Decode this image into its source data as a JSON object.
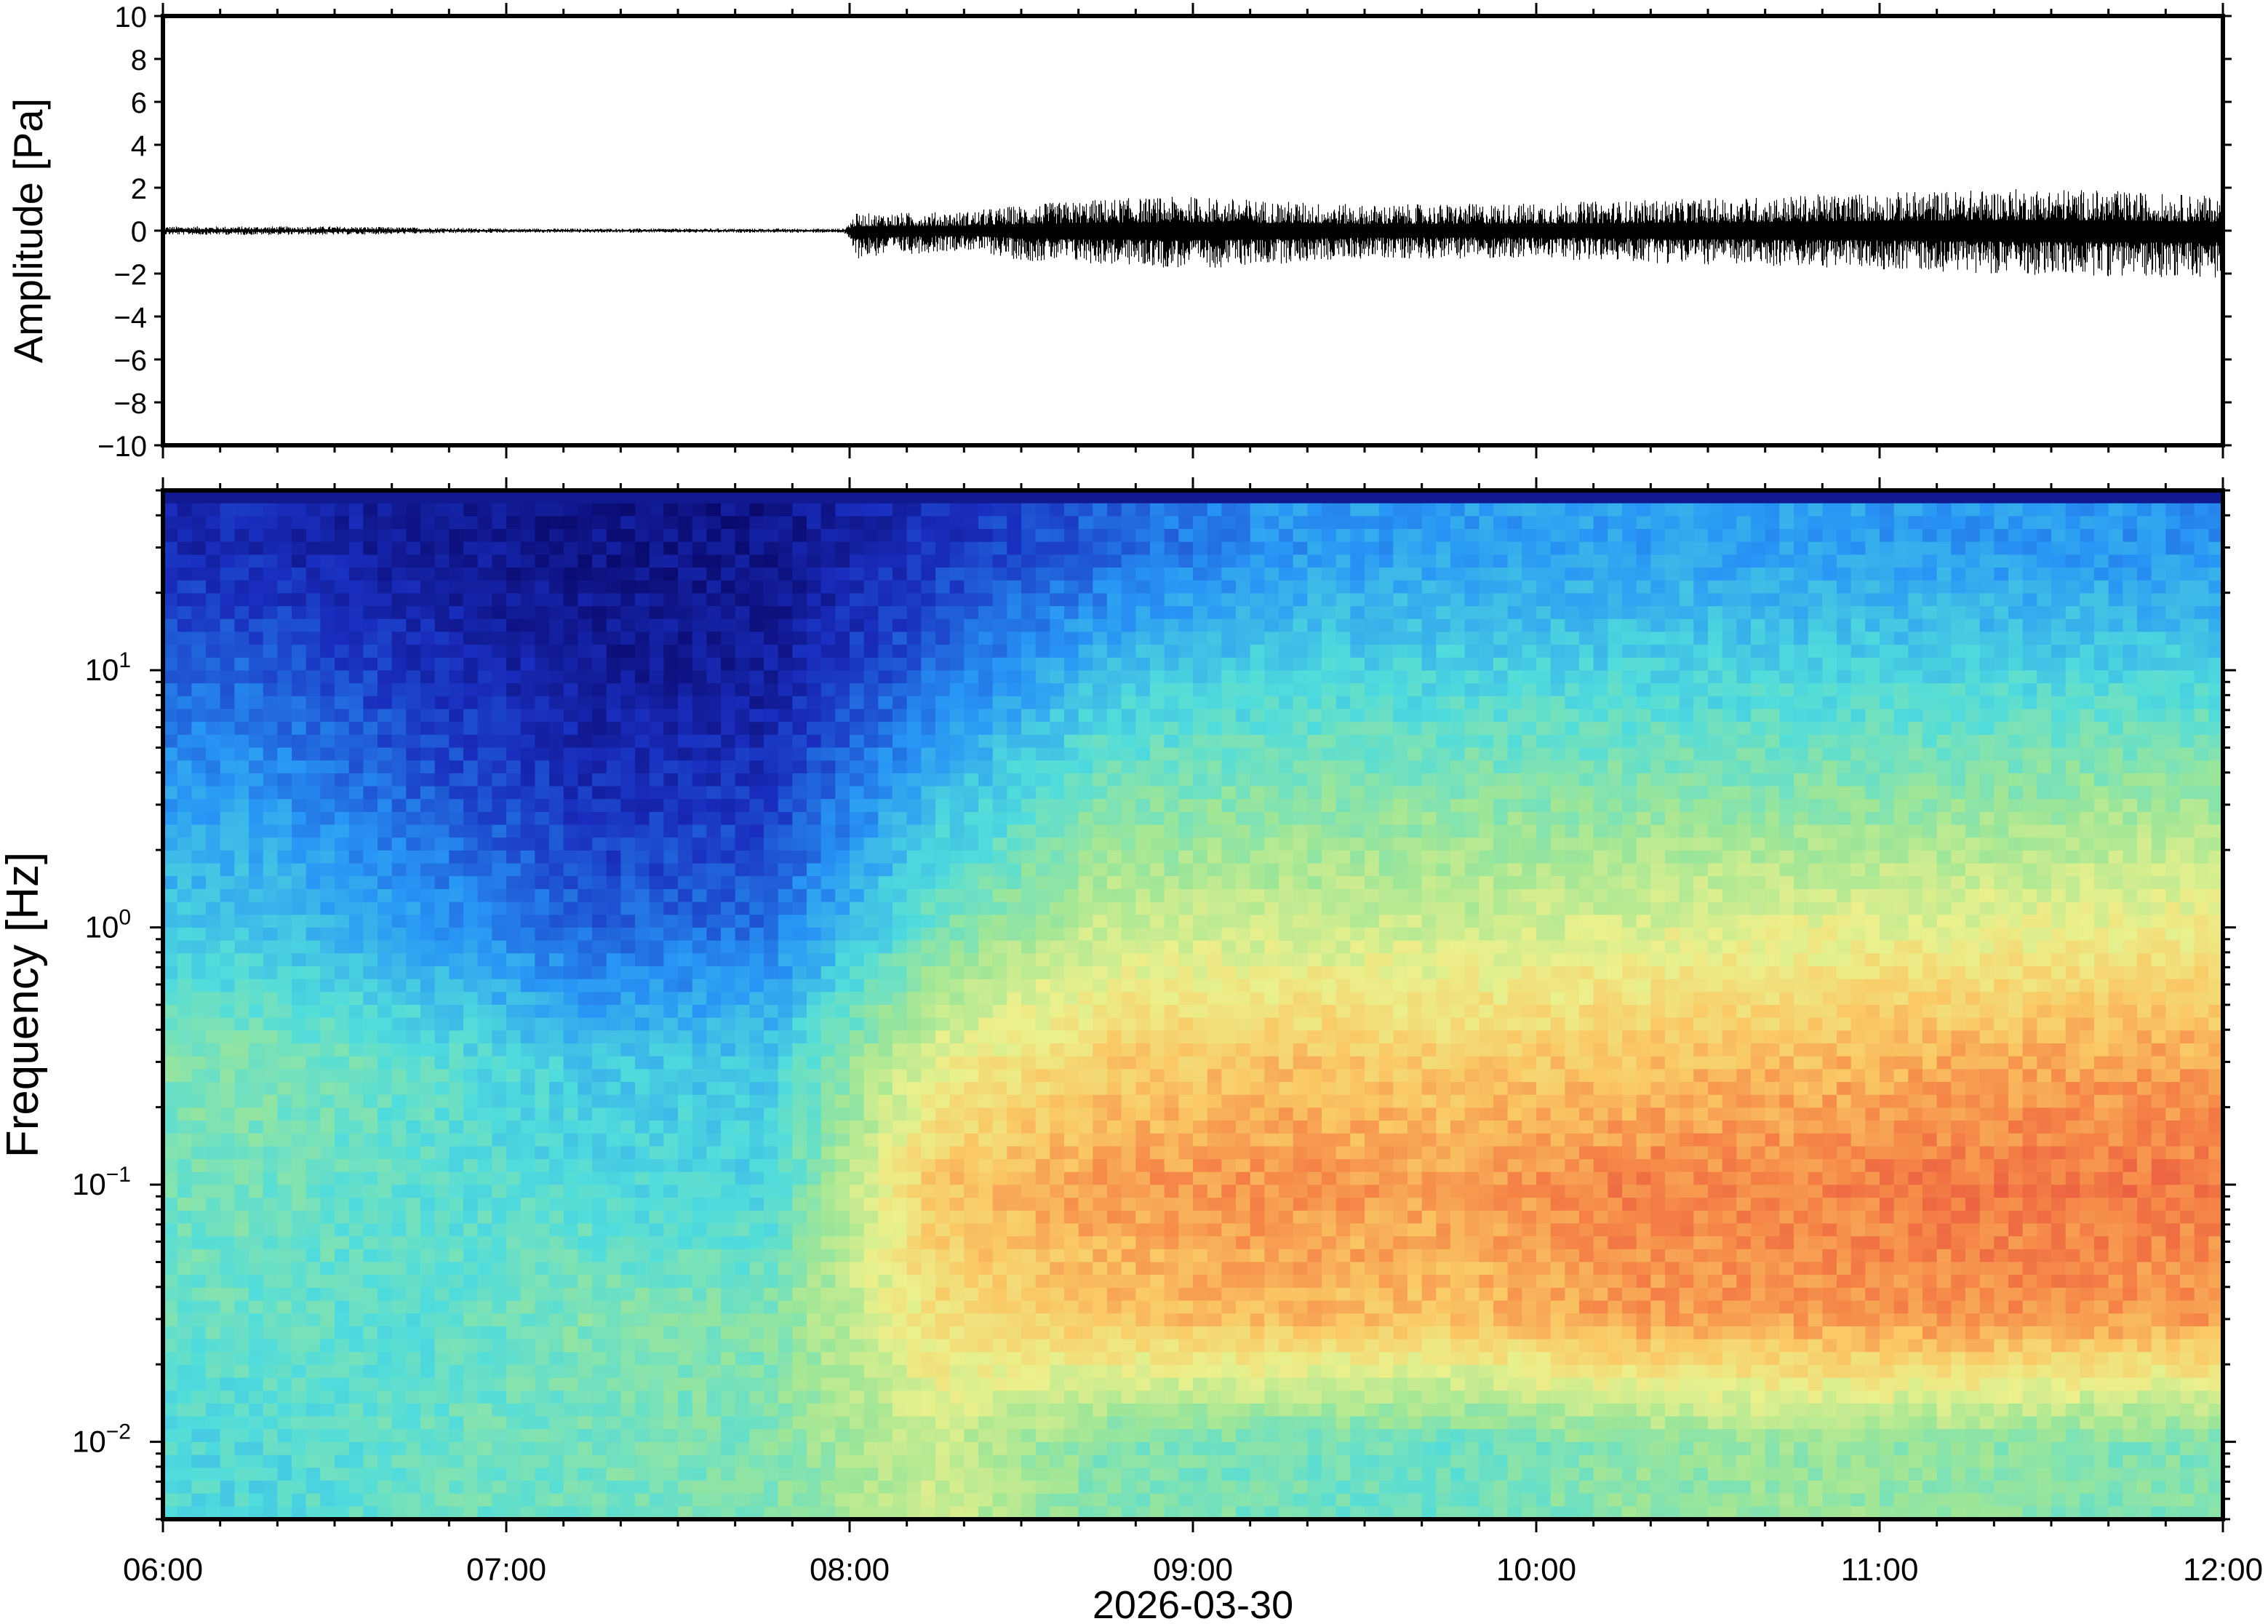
{
  "chart_data": [
    {
      "type": "line",
      "panel": "waveform",
      "title": "",
      "xlabel": "",
      "ylabel": "Amplitude [Pa]",
      "ylim": [
        -10,
        10
      ],
      "yticks": [
        10,
        8,
        6,
        4,
        2,
        0,
        -2,
        -4,
        -6,
        -8,
        -10
      ],
      "ytick_labels": [
        "10",
        "8",
        "6",
        "4",
        "2",
        "0",
        "−2",
        "−4",
        "−6",
        "−8",
        "−10"
      ],
      "x_range": [
        "06:00",
        "12:00"
      ],
      "series": [
        {
          "color": "#000000",
          "x": [
            "06:00",
            "06:30",
            "07:00",
            "07:30",
            "07:59",
            "08:01",
            "08:20",
            "08:30",
            "08:45",
            "09:00",
            "09:30",
            "10:00",
            "10:30",
            "11:00",
            "11:30",
            "12:00"
          ],
          "envelope_max": [
            0.2,
            0.2,
            0.1,
            0.1,
            0.1,
            0.8,
            0.9,
            1.2,
            1.5,
            1.6,
            1.2,
            1.3,
            1.5,
            1.8,
            2.0,
            1.6
          ],
          "envelope_min": [
            -0.2,
            -0.2,
            -0.1,
            -0.1,
            -0.1,
            -1.3,
            -0.9,
            -1.4,
            -1.6,
            -1.8,
            -1.3,
            -1.3,
            -1.6,
            -1.8,
            -2.1,
            -2.2
          ]
        }
      ]
    },
    {
      "type": "heatmap",
      "panel": "spectrogram",
      "title": "",
      "xlabel": "2026-03-30",
      "ylabel": "Frequency [Hz]",
      "y_scale": "log",
      "ylim": [
        0.005,
        50
      ],
      "y_ticks": [
        0.01,
        0.1,
        1,
        10
      ],
      "y_tick_labels": [
        {
          "base": "10",
          "exp": "−2"
        },
        {
          "base": "10",
          "exp": "−1"
        },
        {
          "base": "10",
          "exp": "0"
        },
        {
          "base": "10",
          "exp": "1"
        }
      ],
      "x_ticks": [
        "06:00",
        "07:00",
        "08:00",
        "09:00",
        "10:00",
        "11:00",
        "12:00"
      ],
      "colormap": "jet (blue = low power, red = high power)",
      "frequency_bands_hz": [
        30,
        10,
        3,
        1,
        0.3,
        0.1,
        0.03,
        0.01
      ],
      "time_segments": [
        "06:00",
        "06:30",
        "07:00",
        "07:30",
        "08:00",
        "08:30",
        "09:00",
        "09:30",
        "10:00",
        "10:30",
        "11:00",
        "11:30"
      ],
      "relative_power": [
        [
          0.1,
          0.06,
          0.04,
          0.04,
          0.12,
          0.2,
          0.28,
          0.3,
          0.3,
          0.3,
          0.29,
          0.28
        ],
        [
          0.2,
          0.12,
          0.06,
          0.06,
          0.22,
          0.36,
          0.4,
          0.4,
          0.4,
          0.4,
          0.4,
          0.4
        ],
        [
          0.3,
          0.2,
          0.12,
          0.14,
          0.36,
          0.5,
          0.52,
          0.52,
          0.52,
          0.52,
          0.53,
          0.55
        ],
        [
          0.38,
          0.3,
          0.2,
          0.22,
          0.48,
          0.62,
          0.62,
          0.62,
          0.64,
          0.66,
          0.66,
          0.68
        ],
        [
          0.5,
          0.45,
          0.38,
          0.38,
          0.66,
          0.76,
          0.78,
          0.76,
          0.78,
          0.8,
          0.82,
          0.83
        ],
        [
          0.48,
          0.44,
          0.42,
          0.4,
          0.78,
          0.84,
          0.86,
          0.84,
          0.88,
          0.88,
          0.9,
          0.9
        ],
        [
          0.46,
          0.44,
          0.5,
          0.5,
          0.72,
          0.78,
          0.8,
          0.78,
          0.84,
          0.84,
          0.86,
          0.84
        ],
        [
          0.42,
          0.46,
          0.48,
          0.5,
          0.62,
          0.5,
          0.48,
          0.46,
          0.52,
          0.54,
          0.52,
          0.5
        ]
      ]
    }
  ]
}
